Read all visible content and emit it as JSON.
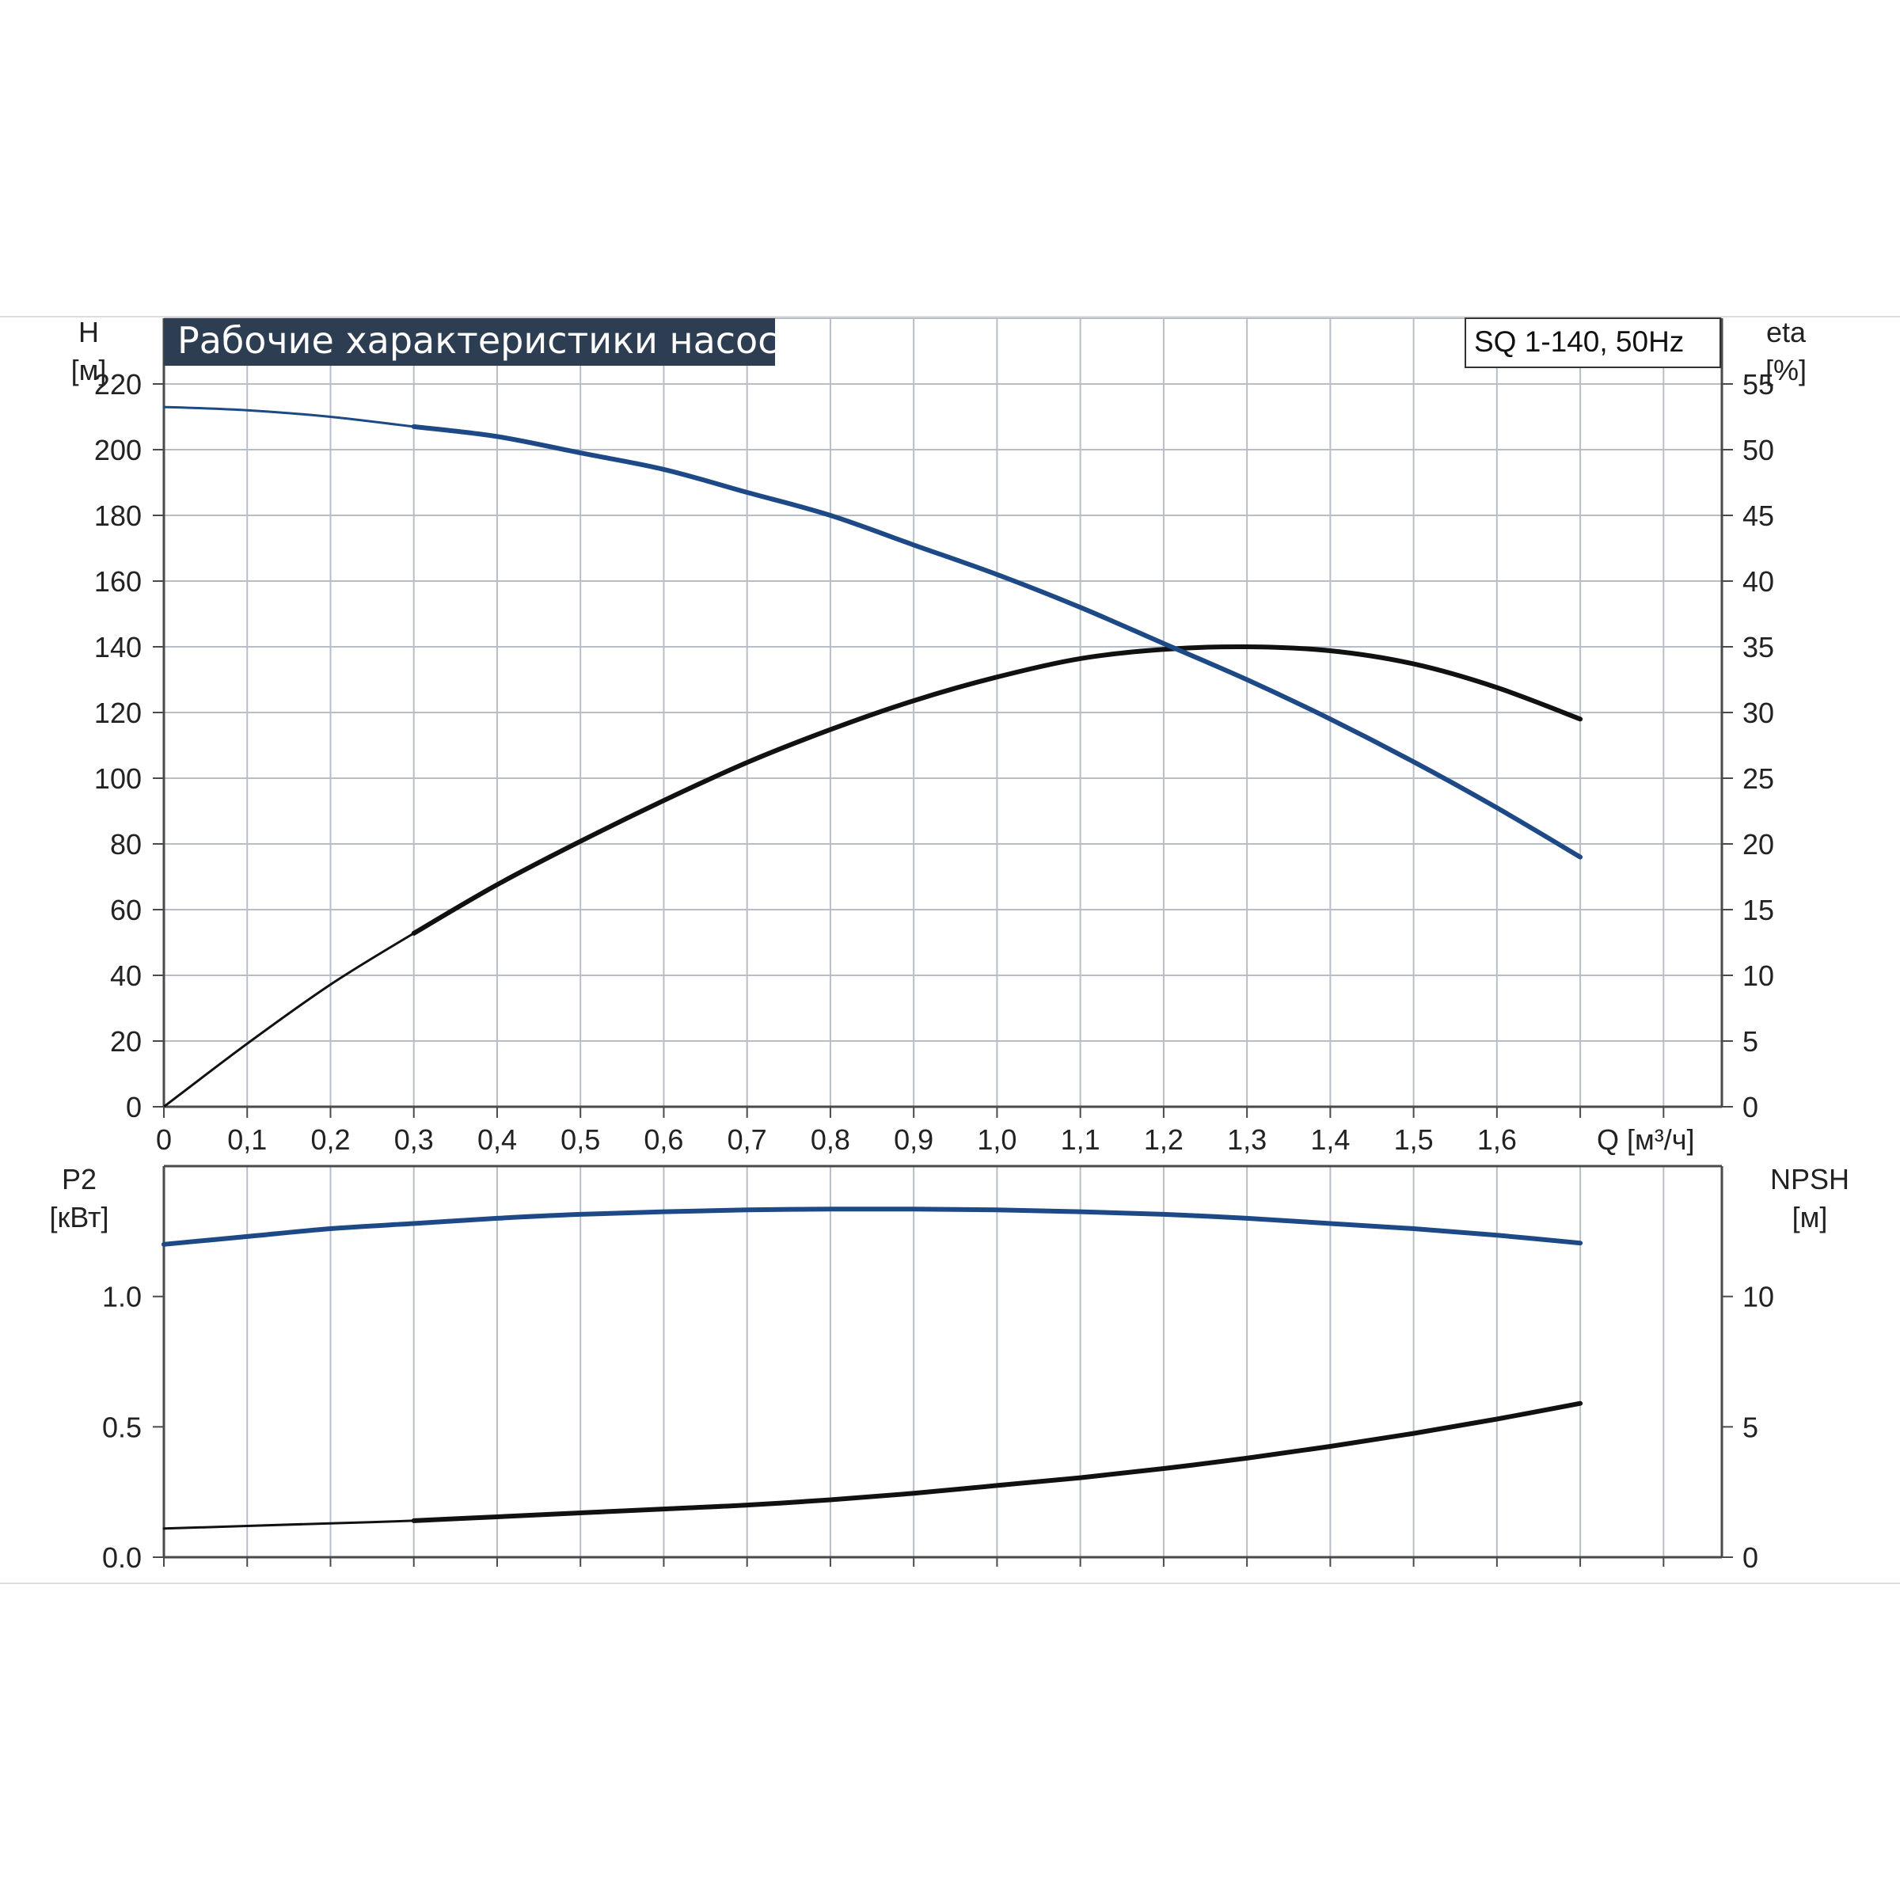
{
  "title": "Рабочие характеристики насоса",
  "model": "SQ 1-140, 50Hz",
  "colors": {
    "title_bg": "#2e3e52",
    "grid": "#b9bec6",
    "axis": "#4a4a4a",
    "blue": "#1d4a86",
    "black": "#111111"
  },
  "chart_data": [
    {
      "type": "line",
      "panel": "upper",
      "title": "Рабочие характеристики насоса",
      "subtitle": "SQ 1-140, 50Hz",
      "xlabel": "Q [м³/ч]",
      "x_ticks": [
        "0",
        "0,1",
        "0,2",
        "0,3",
        "0,4",
        "0,5",
        "0,6",
        "0,7",
        "0,8",
        "0,9",
        "1,0",
        "1,1",
        "1,2",
        "1,3",
        "1,4",
        "1,5",
        "1,6"
      ],
      "xlim": [
        0,
        1.87
      ],
      "grid": true,
      "y_left": {
        "label_line1": "H",
        "label_line2": "[м]",
        "ticks": [
          0,
          20,
          40,
          60,
          80,
          100,
          120,
          140,
          160,
          180,
          200,
          220
        ],
        "lim": [
          0,
          240
        ]
      },
      "y_right": {
        "label_line1": "eta",
        "label_line2": "[%]",
        "ticks": [
          0,
          5,
          10,
          15,
          20,
          25,
          30,
          35,
          40,
          45,
          50,
          55
        ],
        "lim": [
          0,
          60
        ]
      },
      "series": [
        {
          "axis": "left",
          "color": "blue",
          "x": [
            0,
            0.1,
            0.2,
            0.3,
            0.4,
            0.5,
            0.6,
            0.7,
            0.8,
            0.9,
            1.0,
            1.1,
            1.2,
            1.3,
            1.4,
            1.5,
            1.6,
            1.7
          ],
          "y": [
            213,
            212,
            210,
            207,
            204,
            199,
            194,
            187,
            180,
            171,
            162,
            152,
            141,
            130,
            118,
            105,
            91,
            76
          ]
        },
        {
          "axis": "right",
          "color": "black",
          "x": [
            0,
            0.1,
            0.2,
            0.3,
            0.4,
            0.5,
            0.6,
            0.7,
            0.8,
            0.9,
            1.0,
            1.1,
            1.2,
            1.3,
            1.4,
            1.5,
            1.6,
            1.7
          ],
          "y": [
            0,
            4.8,
            9.3,
            13.2,
            16.9,
            20.2,
            23.3,
            26.2,
            28.7,
            30.9,
            32.7,
            34.1,
            34.8,
            35.0,
            34.7,
            33.7,
            31.9,
            29.5
          ]
        }
      ]
    },
    {
      "type": "line",
      "panel": "lower",
      "xlim": [
        0,
        1.87
      ],
      "grid": true,
      "y_left": {
        "label_line1": "P2",
        "label_line2": "[кВт]",
        "ticks": [
          "0.0",
          "0.5",
          "1.0"
        ],
        "tick_values": [
          0,
          0.5,
          1.0
        ],
        "lim": [
          0,
          1.5
        ]
      },
      "y_right": {
        "label_line1": "NPSH",
        "label_line2": "[м]",
        "ticks": [
          0,
          5,
          10
        ],
        "lim": [
          0,
          15
        ]
      },
      "series": [
        {
          "axis": "left",
          "color": "blue",
          "x": [
            0,
            0.1,
            0.2,
            0.3,
            0.4,
            0.5,
            0.6,
            0.7,
            0.8,
            0.9,
            1.0,
            1.1,
            1.2,
            1.3,
            1.4,
            1.5,
            1.6,
            1.7
          ],
          "y": [
            1.2,
            1.23,
            1.26,
            1.28,
            1.3,
            1.315,
            1.325,
            1.332,
            1.335,
            1.335,
            1.332,
            1.325,
            1.315,
            1.3,
            1.28,
            1.26,
            1.235,
            1.205
          ]
        },
        {
          "axis": "right",
          "color": "black",
          "x": [
            0,
            0.1,
            0.2,
            0.3,
            0.4,
            0.5,
            0.6,
            0.7,
            0.8,
            0.9,
            1.0,
            1.1,
            1.2,
            1.3,
            1.4,
            1.5,
            1.6,
            1.7
          ],
          "y": [
            1.1,
            1.2,
            1.3,
            1.4,
            1.55,
            1.7,
            1.85,
            2.0,
            2.2,
            2.45,
            2.75,
            3.05,
            3.4,
            3.8,
            4.25,
            4.75,
            5.3,
            5.9
          ]
        }
      ]
    }
  ]
}
